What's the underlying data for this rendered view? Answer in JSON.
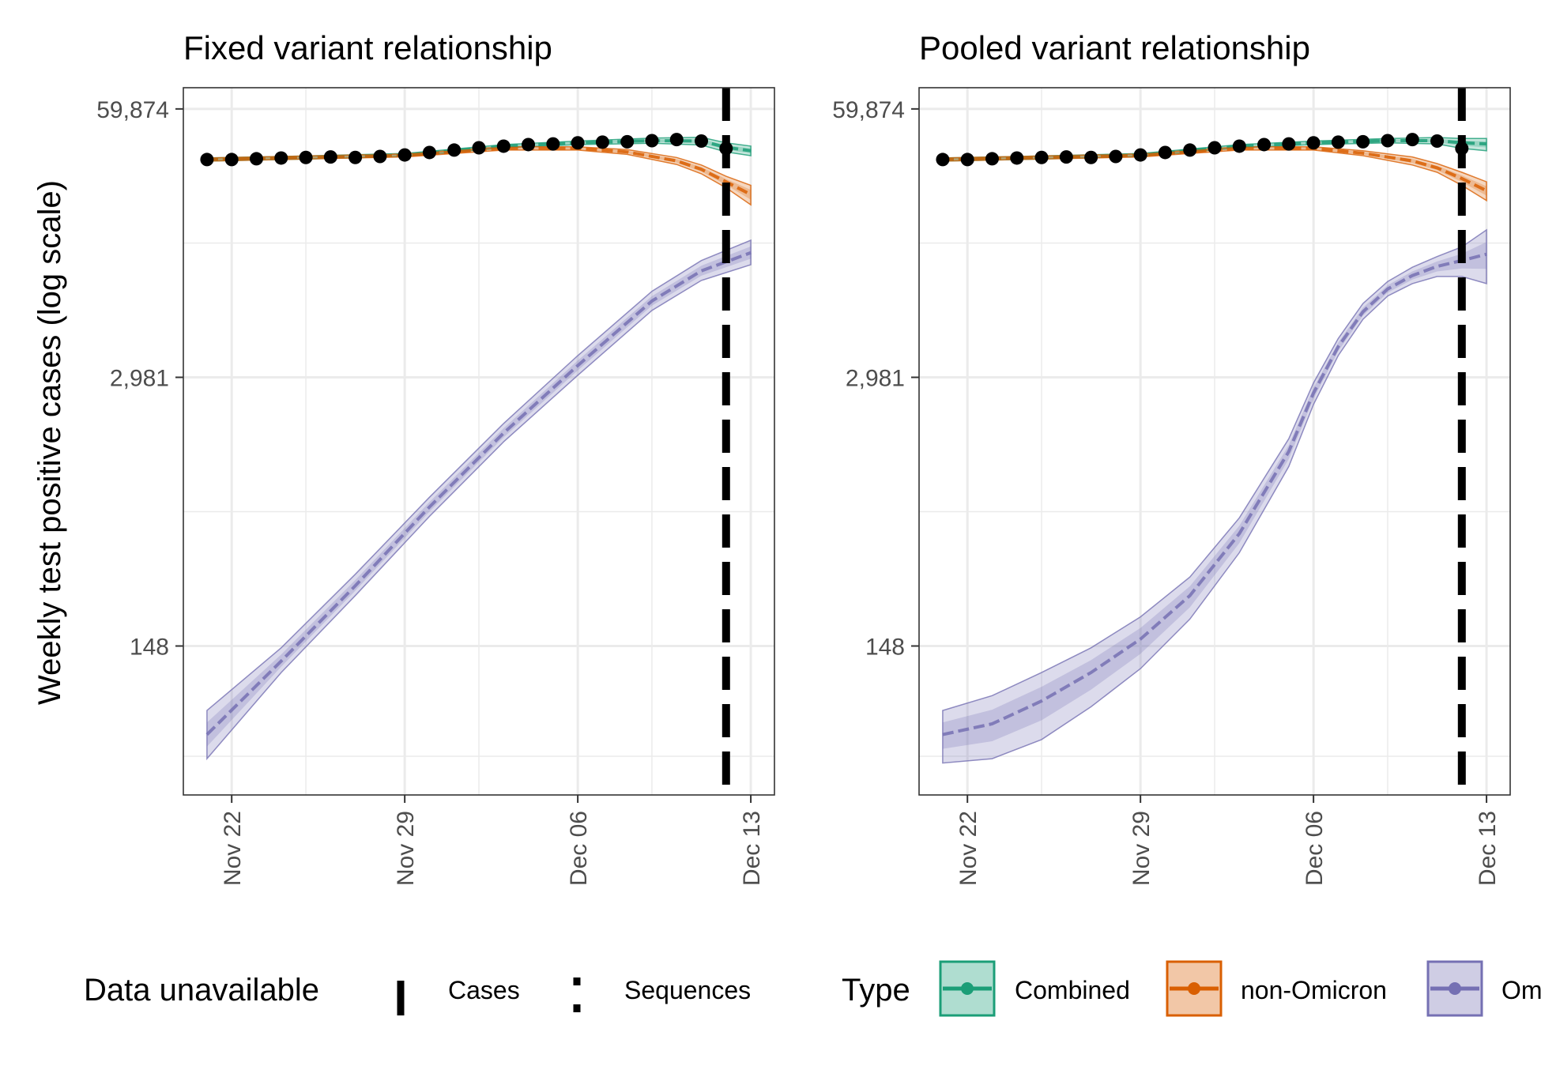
{
  "ylabel": "Weekly test positive cases (log scale)",
  "y_ticks": [
    "59,874",
    "2,981",
    "148"
  ],
  "x_ticks": [
    "Nov 22",
    "Nov 29",
    "Dec 06",
    "Dec 13"
  ],
  "legend": {
    "unavailable_title": "Data unavailable",
    "unavailable_items": [
      "Cases",
      "Sequences"
    ],
    "type_title": "Type",
    "type_items": [
      "Combined",
      "non-Omicron",
      "Om"
    ]
  },
  "colors": {
    "combined": "#1b9e77",
    "non_omicron": "#d95f02",
    "omicron": "#7570b3",
    "observed": "#000000"
  },
  "chart_data": [
    {
      "type": "line",
      "title": "Fixed variant relationship",
      "xlabel": "",
      "ylabel": "Weekly test positive cases (log scale)",
      "y_scale": "log",
      "ylim": [
        28,
        59874
      ],
      "x_start": "2021-11-21",
      "x_end": "2021-12-13",
      "x_ticks": [
        "Nov 22",
        "Nov 29",
        "Dec 06",
        "Dec 13"
      ],
      "cases_unavailable_from": "2021-12-12",
      "sequences_unavailable_from": "2021-12-12",
      "observed": [
        {
          "date": "2021-11-21",
          "value": 34000
        },
        {
          "date": "2021-11-22",
          "value": 34000
        },
        {
          "date": "2021-11-23",
          "value": 34300
        },
        {
          "date": "2021-11-24",
          "value": 34600
        },
        {
          "date": "2021-11-25",
          "value": 34800
        },
        {
          "date": "2021-11-26",
          "value": 35000
        },
        {
          "date": "2021-11-27",
          "value": 34800
        },
        {
          "date": "2021-11-28",
          "value": 35200
        },
        {
          "date": "2021-11-29",
          "value": 35800
        },
        {
          "date": "2021-11-30",
          "value": 36800
        },
        {
          "date": "2021-12-01",
          "value": 37800
        },
        {
          "date": "2021-12-02",
          "value": 38800
        },
        {
          "date": "2021-12-03",
          "value": 39500
        },
        {
          "date": "2021-12-04",
          "value": 40200
        },
        {
          "date": "2021-12-05",
          "value": 40500
        },
        {
          "date": "2021-12-06",
          "value": 41000
        },
        {
          "date": "2021-12-07",
          "value": 41300
        },
        {
          "date": "2021-12-08",
          "value": 41500
        },
        {
          "date": "2021-12-09",
          "value": 42000
        },
        {
          "date": "2021-12-10",
          "value": 42500
        },
        {
          "date": "2021-12-11",
          "value": 41800
        },
        {
          "date": "2021-12-12",
          "value": 38500
        }
      ],
      "series": [
        {
          "name": "Combined",
          "x": [
            "2021-11-21",
            "2021-11-25",
            "2021-11-29",
            "2021-12-03",
            "2021-12-06",
            "2021-12-09",
            "2021-12-11",
            "2021-12-12",
            "2021-12-13"
          ],
          "values": [
            34000,
            34800,
            35800,
            39500,
            41000,
            42000,
            41800,
            39000,
            37500
          ],
          "lower": [
            33400,
            34200,
            35200,
            38800,
            40200,
            40800,
            40000,
            37000,
            35500
          ],
          "upper": [
            34600,
            35400,
            36400,
            40200,
            41800,
            43200,
            43600,
            41000,
            39500
          ]
        },
        {
          "name": "non-Omicron",
          "x": [
            "2021-11-21",
            "2021-11-25",
            "2021-11-29",
            "2021-12-03",
            "2021-12-06",
            "2021-12-08",
            "2021-12-10",
            "2021-12-11",
            "2021-12-12",
            "2021-12-13"
          ],
          "values": [
            34000,
            34800,
            35600,
            38500,
            38500,
            37000,
            33500,
            30500,
            26500,
            23000
          ],
          "lower": [
            33400,
            34200,
            35000,
            37800,
            37800,
            36000,
            32200,
            29000,
            24800,
            20500
          ],
          "upper": [
            34600,
            35400,
            36200,
            39200,
            39200,
            38000,
            34800,
            32000,
            28200,
            25500
          ]
        },
        {
          "name": "Omicron",
          "x": [
            "2021-11-21",
            "2021-11-24",
            "2021-11-27",
            "2021-11-30",
            "2021-12-03",
            "2021-12-06",
            "2021-12-09",
            "2021-12-11",
            "2021-12-13"
          ],
          "values": [
            55,
            125,
            290,
            700,
            1600,
            3400,
            7000,
            9800,
            12000
          ],
          "lower": [
            42,
            110,
            260,
            630,
            1450,
            3050,
            6300,
            8800,
            10500
          ],
          "upper": [
            72,
            145,
            330,
            780,
            1780,
            3800,
            7800,
            11000,
            13800
          ]
        }
      ]
    },
    {
      "type": "line",
      "title": "Pooled variant relationship",
      "xlabel": "",
      "ylabel": "",
      "y_scale": "log",
      "ylim": [
        28,
        59874
      ],
      "x_start": "2021-11-21",
      "x_end": "2021-12-13",
      "x_ticks": [
        "Nov 22",
        "Nov 29",
        "Dec 06",
        "Dec 13"
      ],
      "cases_unavailable_from": "2021-12-12",
      "sequences_unavailable_from": "2021-12-12",
      "observed": [
        {
          "date": "2021-11-21",
          "value": 34000
        },
        {
          "date": "2021-11-22",
          "value": 34000
        },
        {
          "date": "2021-11-23",
          "value": 34300
        },
        {
          "date": "2021-11-24",
          "value": 34600
        },
        {
          "date": "2021-11-25",
          "value": 34800
        },
        {
          "date": "2021-11-26",
          "value": 35000
        },
        {
          "date": "2021-11-27",
          "value": 34800
        },
        {
          "date": "2021-11-28",
          "value": 35200
        },
        {
          "date": "2021-11-29",
          "value": 35800
        },
        {
          "date": "2021-11-30",
          "value": 36800
        },
        {
          "date": "2021-12-01",
          "value": 37800
        },
        {
          "date": "2021-12-02",
          "value": 38800
        },
        {
          "date": "2021-12-03",
          "value": 39500
        },
        {
          "date": "2021-12-04",
          "value": 40200
        },
        {
          "date": "2021-12-05",
          "value": 40500
        },
        {
          "date": "2021-12-06",
          "value": 41000
        },
        {
          "date": "2021-12-07",
          "value": 41300
        },
        {
          "date": "2021-12-08",
          "value": 41500
        },
        {
          "date": "2021-12-09",
          "value": 42000
        },
        {
          "date": "2021-12-10",
          "value": 42500
        },
        {
          "date": "2021-12-11",
          "value": 41800
        },
        {
          "date": "2021-12-12",
          "value": 38500
        }
      ],
      "series": [
        {
          "name": "Combined",
          "x": [
            "2021-11-21",
            "2021-11-25",
            "2021-11-29",
            "2021-12-03",
            "2021-12-06",
            "2021-12-09",
            "2021-12-11",
            "2021-12-12",
            "2021-12-13"
          ],
          "values": [
            34000,
            34800,
            35800,
            39500,
            41000,
            42000,
            42000,
            41000,
            40500
          ],
          "lower": [
            33400,
            34200,
            35200,
            38800,
            40200,
            41000,
            40500,
            38500,
            37500
          ],
          "upper": [
            34600,
            35400,
            36400,
            40200,
            41800,
            43000,
            43500,
            43000,
            43000
          ]
        },
        {
          "name": "non-Omicron",
          "x": [
            "2021-11-21",
            "2021-11-25",
            "2021-11-29",
            "2021-12-03",
            "2021-12-06",
            "2021-12-08",
            "2021-12-10",
            "2021-12-11",
            "2021-12-12",
            "2021-12-13"
          ],
          "values": [
            34000,
            34800,
            35600,
            38500,
            38500,
            36500,
            33500,
            31000,
            27500,
            24000
          ],
          "lower": [
            33400,
            34200,
            35000,
            37800,
            37800,
            35500,
            32000,
            29500,
            25500,
            21500
          ],
          "upper": [
            34600,
            35400,
            36200,
            39200,
            39200,
            37500,
            35000,
            32500,
            29500,
            26500
          ]
        },
        {
          "name": "Omicron",
          "x": [
            "2021-11-21",
            "2021-11-23",
            "2021-11-25",
            "2021-11-27",
            "2021-11-29",
            "2021-12-01",
            "2021-12-03",
            "2021-12-05",
            "2021-12-06",
            "2021-12-07",
            "2021-12-08",
            "2021-12-09",
            "2021-12-10",
            "2021-12-11",
            "2021-12-12",
            "2021-12-13"
          ],
          "values": [
            55,
            62,
            80,
            110,
            160,
            260,
            520,
            1300,
            2500,
            4200,
            6200,
            8000,
            9300,
            10300,
            11000,
            11800
          ],
          "lower": [
            40,
            42,
            52,
            75,
            115,
            200,
            420,
            1100,
            2200,
            3800,
            5700,
            7400,
            8500,
            9200,
            9200,
            8500
          ],
          "upper": [
            72,
            85,
            110,
            145,
            205,
            320,
            620,
            1500,
            2800,
            4600,
            6800,
            8700,
            10200,
            11500,
            12800,
            15500
          ]
        }
      ]
    }
  ]
}
